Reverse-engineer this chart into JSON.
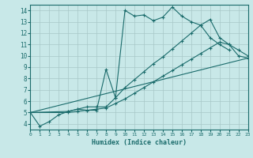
{
  "xlabel": "Humidex (Indice chaleur)",
  "xlim": [
    0,
    23
  ],
  "ylim": [
    3.5,
    14.5
  ],
  "xticks": [
    0,
    1,
    2,
    3,
    4,
    5,
    6,
    7,
    8,
    9,
    10,
    11,
    12,
    13,
    14,
    15,
    16,
    17,
    18,
    19,
    20,
    21,
    22,
    23
  ],
  "yticks": [
    4,
    5,
    6,
    7,
    8,
    9,
    10,
    11,
    12,
    13,
    14
  ],
  "bg_color": "#c8e8e8",
  "line_color": "#1a6b6b",
  "grid_color": "#b0d0d0",
  "line1_x": [
    0,
    1,
    2,
    3,
    4,
    5,
    6,
    7,
    8,
    9,
    10,
    11,
    12,
    13,
    14,
    15,
    16,
    17,
    18,
    19,
    20,
    21
  ],
  "line1_y": [
    5.0,
    3.8,
    4.2,
    4.8,
    5.1,
    5.3,
    5.2,
    5.2,
    8.8,
    6.3,
    14.0,
    13.5,
    13.6,
    13.1,
    13.4,
    14.3,
    13.5,
    13.0,
    12.7,
    11.6,
    11.0,
    10.5
  ],
  "line2_x": [
    0,
    4,
    5,
    6,
    7,
    8,
    9,
    10,
    11,
    12,
    13,
    14,
    15,
    16,
    17,
    18,
    19,
    20,
    21,
    22,
    23
  ],
  "line2_y": [
    5.0,
    5.1,
    5.3,
    5.5,
    5.5,
    5.5,
    6.3,
    7.2,
    7.9,
    8.6,
    9.3,
    9.9,
    10.6,
    11.3,
    12.0,
    12.7,
    13.2,
    11.6,
    11.0,
    10.5,
    10.0
  ],
  "line3_x": [
    0,
    4,
    5,
    6,
    7,
    8,
    9,
    10,
    11,
    12,
    13,
    14,
    15,
    16,
    17,
    18,
    19,
    20,
    21,
    22,
    23
  ],
  "line3_y": [
    5.0,
    5.0,
    5.1,
    5.2,
    5.3,
    5.4,
    5.8,
    6.2,
    6.7,
    7.2,
    7.7,
    8.2,
    8.7,
    9.2,
    9.7,
    10.2,
    10.7,
    11.2,
    11.0,
    10.0,
    9.8
  ],
  "line4_x": [
    0,
    23
  ],
  "line4_y": [
    5.0,
    9.8
  ]
}
